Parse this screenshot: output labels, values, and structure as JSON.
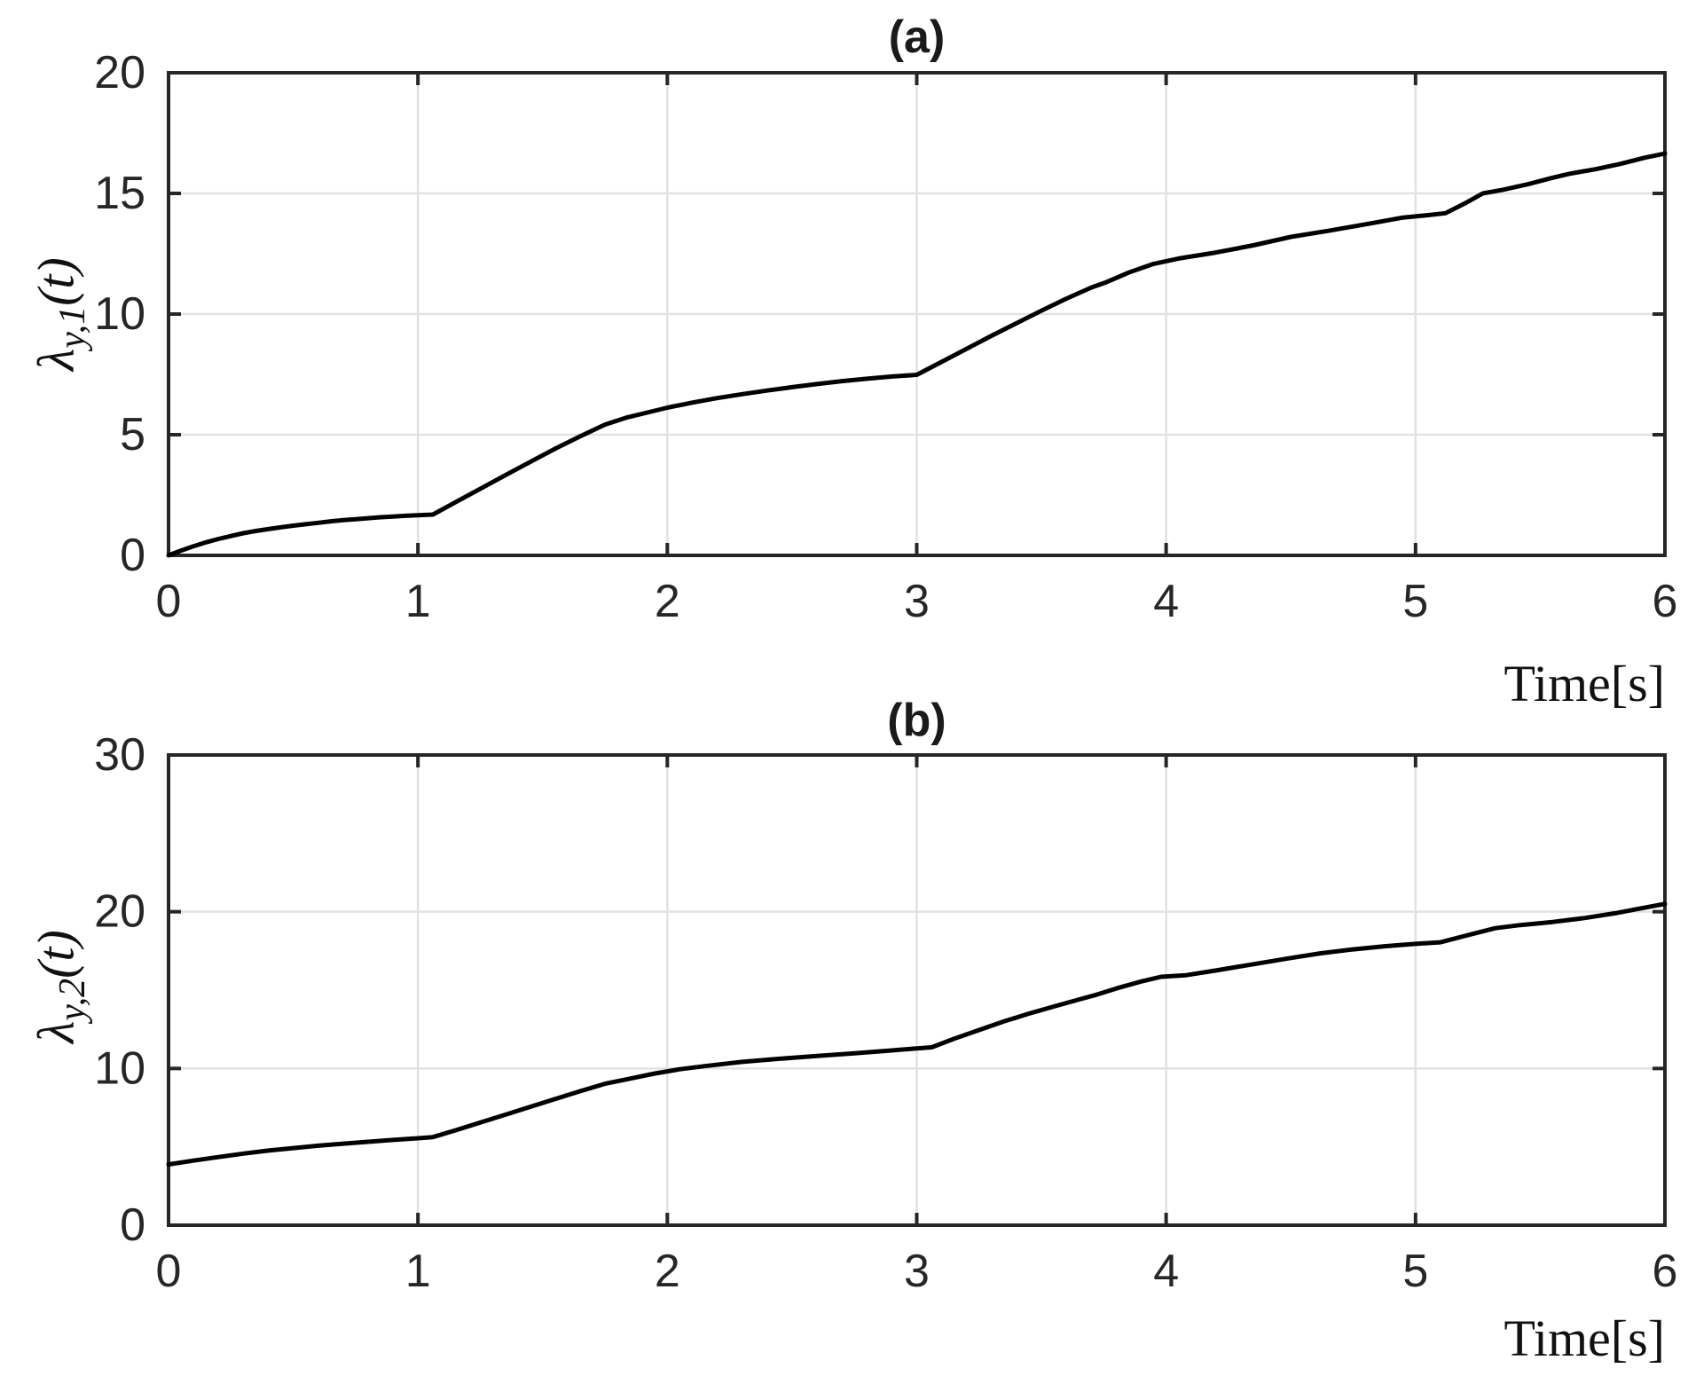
{
  "figure": {
    "background": "#ffffff",
    "axis_color": "#262626",
    "grid_color": "#e2e2e2",
    "curve_color": "#000000",
    "panels": [
      {
        "title": "(a)",
        "xlabel": "Time[s]",
        "ylabel_symbol": "λ",
        "ylabel_sub": "y,1",
        "ylabel_rest": "(t)"
      },
      {
        "title": "(b)",
        "xlabel": "Time[s]",
        "ylabel_symbol": "λ",
        "ylabel_sub": "y,2",
        "ylabel_rest": "(t)"
      }
    ]
  },
  "chart_data": [
    {
      "type": "line",
      "title": "(a)",
      "xlabel": "Time[s]",
      "ylabel": "λ_{y,1}(t)",
      "xlim": [
        0,
        6
      ],
      "ylim": [
        0,
        20
      ],
      "xticks": [
        0,
        1,
        2,
        3,
        4,
        5,
        6
      ],
      "yticks": [
        0,
        5,
        10,
        15,
        20
      ],
      "grid": true,
      "legend": "none",
      "line_color": "#000000",
      "series": [
        {
          "name": "λ_{y,1}(t)",
          "points": [
            [
              0,
              0
            ],
            [
              0.05,
              0.2
            ],
            [
              0.1,
              0.38
            ],
            [
              0.15,
              0.54
            ],
            [
              0.2,
              0.68
            ],
            [
              0.25,
              0.8
            ],
            [
              0.3,
              0.92
            ],
            [
              0.35,
              1.01
            ],
            [
              0.4,
              1.09
            ],
            [
              0.45,
              1.16
            ],
            [
              0.5,
              1.23
            ],
            [
              0.55,
              1.29
            ],
            [
              0.6,
              1.35
            ],
            [
              0.65,
              1.41
            ],
            [
              0.7,
              1.46
            ],
            [
              0.75,
              1.5
            ],
            [
              0.8,
              1.54
            ],
            [
              0.85,
              1.58
            ],
            [
              0.9,
              1.61
            ],
            [
              0.95,
              1.64
            ],
            [
              1.0,
              1.66
            ],
            [
              1.06,
              1.69
            ],
            [
              1.15,
              2.2
            ],
            [
              1.25,
              2.76
            ],
            [
              1.35,
              3.32
            ],
            [
              1.45,
              3.87
            ],
            [
              1.55,
              4.42
            ],
            [
              1.65,
              4.93
            ],
            [
              1.75,
              5.42
            ],
            [
              1.84,
              5.72
            ],
            [
              1.92,
              5.92
            ],
            [
              2.0,
              6.12
            ],
            [
              2.1,
              6.33
            ],
            [
              2.2,
              6.52
            ],
            [
              2.3,
              6.68
            ],
            [
              2.4,
              6.83
            ],
            [
              2.5,
              6.97
            ],
            [
              2.6,
              7.1
            ],
            [
              2.7,
              7.22
            ],
            [
              2.8,
              7.32
            ],
            [
              2.9,
              7.41
            ],
            [
              3.0,
              7.48
            ],
            [
              3.1,
              8.02
            ],
            [
              3.2,
              8.56
            ],
            [
              3.3,
              9.1
            ],
            [
              3.4,
              9.62
            ],
            [
              3.5,
              10.14
            ],
            [
              3.6,
              10.64
            ],
            [
              3.7,
              11.1
            ],
            [
              3.76,
              11.32
            ],
            [
              3.85,
              11.72
            ],
            [
              3.95,
              12.08
            ],
            [
              4.05,
              12.3
            ],
            [
              4.2,
              12.55
            ],
            [
              4.35,
              12.85
            ],
            [
              4.5,
              13.2
            ],
            [
              4.65,
              13.45
            ],
            [
              4.8,
              13.72
            ],
            [
              4.95,
              14.0
            ],
            [
              5.05,
              14.1
            ],
            [
              5.12,
              14.18
            ],
            [
              5.2,
              14.6
            ],
            [
              5.27,
              15.0
            ],
            [
              5.35,
              15.15
            ],
            [
              5.45,
              15.38
            ],
            [
              5.55,
              15.65
            ],
            [
              5.62,
              15.82
            ],
            [
              5.72,
              16.0
            ],
            [
              5.82,
              16.22
            ],
            [
              5.92,
              16.48
            ],
            [
              6.0,
              16.65
            ]
          ]
        }
      ]
    },
    {
      "type": "line",
      "title": "(b)",
      "xlabel": "Time[s]",
      "ylabel": "λ_{y,2}(t)",
      "xlim": [
        0,
        6
      ],
      "ylim": [
        0,
        30
      ],
      "xticks": [
        0,
        1,
        2,
        3,
        4,
        5,
        6
      ],
      "yticks": [
        0,
        10,
        20,
        30
      ],
      "grid": true,
      "legend": "none",
      "line_color": "#000000",
      "series": [
        {
          "name": "λ_{y,2}(t)",
          "points": [
            [
              0,
              3.88
            ],
            [
              0.1,
              4.12
            ],
            [
              0.2,
              4.35
            ],
            [
              0.3,
              4.57
            ],
            [
              0.4,
              4.76
            ],
            [
              0.5,
              4.92
            ],
            [
              0.6,
              5.07
            ],
            [
              0.7,
              5.2
            ],
            [
              0.8,
              5.32
            ],
            [
              0.9,
              5.44
            ],
            [
              1.0,
              5.55
            ],
            [
              1.06,
              5.62
            ],
            [
              1.15,
              6.05
            ],
            [
              1.25,
              6.55
            ],
            [
              1.35,
              7.05
            ],
            [
              1.45,
              7.55
            ],
            [
              1.55,
              8.05
            ],
            [
              1.65,
              8.55
            ],
            [
              1.75,
              9.02
            ],
            [
              1.85,
              9.35
            ],
            [
              1.95,
              9.68
            ],
            [
              2.05,
              9.95
            ],
            [
              2.15,
              10.15
            ],
            [
              2.3,
              10.42
            ],
            [
              2.45,
              10.62
            ],
            [
              2.6,
              10.8
            ],
            [
              2.75,
              10.97
            ],
            [
              2.9,
              11.15
            ],
            [
              3.0,
              11.28
            ],
            [
              3.06,
              11.35
            ],
            [
              3.15,
              11.9
            ],
            [
              3.25,
              12.45
            ],
            [
              3.35,
              13.0
            ],
            [
              3.45,
              13.5
            ],
            [
              3.55,
              13.95
            ],
            [
              3.65,
              14.4
            ],
            [
              3.72,
              14.7
            ],
            [
              3.8,
              15.1
            ],
            [
              3.9,
              15.55
            ],
            [
              3.98,
              15.85
            ],
            [
              4.08,
              15.95
            ],
            [
              4.2,
              16.25
            ],
            [
              4.35,
              16.65
            ],
            [
              4.5,
              17.05
            ],
            [
              4.62,
              17.35
            ],
            [
              4.75,
              17.6
            ],
            [
              4.88,
              17.8
            ],
            [
              5.0,
              17.95
            ],
            [
              5.1,
              18.05
            ],
            [
              5.22,
              18.55
            ],
            [
              5.32,
              18.95
            ],
            [
              5.42,
              19.15
            ],
            [
              5.55,
              19.35
            ],
            [
              5.68,
              19.6
            ],
            [
              5.8,
              19.9
            ],
            [
              5.9,
              20.2
            ],
            [
              6.0,
              20.5
            ]
          ]
        }
      ]
    }
  ]
}
